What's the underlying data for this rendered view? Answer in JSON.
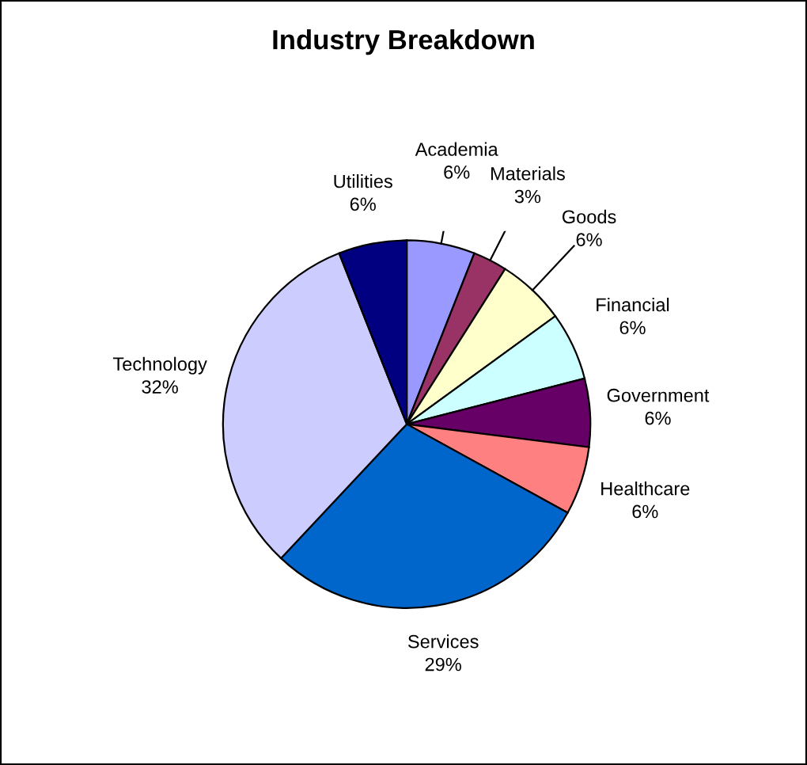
{
  "chart_data": {
    "type": "pie",
    "title": "Industry Breakdown",
    "categories": [
      "Academia",
      "Materials",
      "Goods",
      "Financial",
      "Government",
      "Healthcare",
      "Services",
      "Technology",
      "Utilities"
    ],
    "values": [
      6,
      3,
      6,
      6,
      6,
      6,
      29,
      32,
      6
    ],
    "value_labels": [
      "6%",
      "3%",
      "6%",
      "6%",
      "6%",
      "6%",
      "29%",
      "32%",
      "6%"
    ],
    "colors": [
      "#9999ff",
      "#993366",
      "#ffffcc",
      "#ccffff",
      "#660066",
      "#ff8080",
      "#0066cc",
      "#ccccff",
      "#000080"
    ],
    "legend": false
  }
}
